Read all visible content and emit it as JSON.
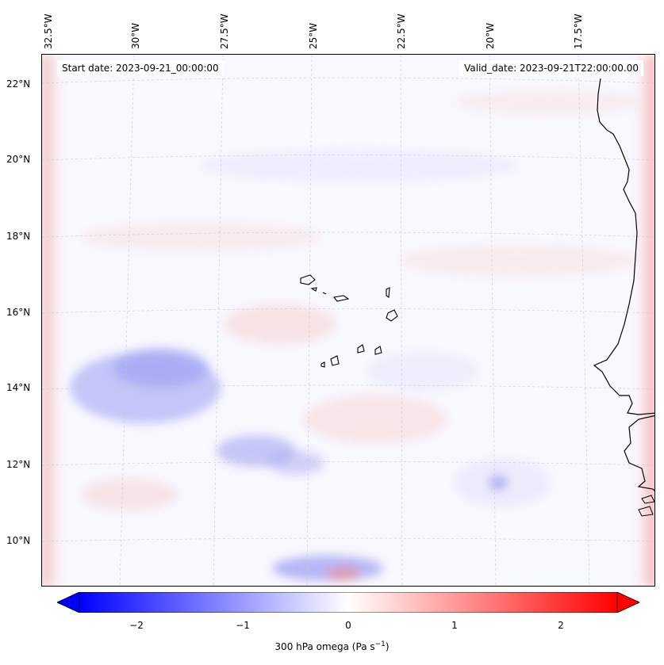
{
  "map": {
    "start_date": "Start date: 2023-09-21_00:00:00",
    "valid_date": "Valid_date: 2023-09-21T22:00:00.00",
    "lon_labels": [
      "32.5°W",
      "30°W",
      "27.5°W",
      "25°W",
      "22.5°W",
      "20°W",
      "17.5°W"
    ],
    "lat_labels": [
      "22°N",
      "20°N",
      "18°N",
      "16°N",
      "14°N",
      "12°N",
      "10°N"
    ],
    "colorbar": {
      "ticks": [
        "−2",
        "−1",
        "0",
        "1",
        "2"
      ],
      "label": "300 hPa omega (Pa s",
      "label_sup": "−1",
      "label_end": ")",
      "range": [
        -2.7,
        2.7
      ],
      "cmap": "bwr",
      "low_color": "#0000ff",
      "mid_color": "#ffffff",
      "high_color": "#ff0000"
    }
  }
}
